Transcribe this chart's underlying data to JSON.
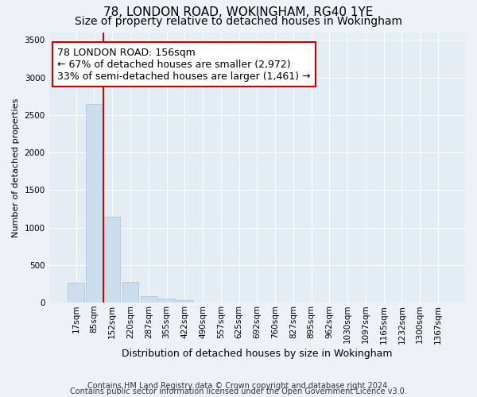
{
  "title1": "78, LONDON ROAD, WOKINGHAM, RG40 1YE",
  "title2": "Size of property relative to detached houses in Wokingham",
  "xlabel": "Distribution of detached houses by size in Wokingham",
  "ylabel": "Number of detached properties",
  "footnote1": "Contains HM Land Registry data © Crown copyright and database right 2024.",
  "footnote2": "Contains public sector information licensed under the Open Government Licence v3.0.",
  "bar_labels": [
    "17sqm",
    "85sqm",
    "152sqm",
    "220sqm",
    "287sqm",
    "355sqm",
    "422sqm",
    "490sqm",
    "557sqm",
    "625sqm",
    "692sqm",
    "760sqm",
    "827sqm",
    "895sqm",
    "962sqm",
    "1030sqm",
    "1097sqm",
    "1165sqm",
    "1232sqm",
    "1300sqm",
    "1367sqm"
  ],
  "bar_values": [
    270,
    2650,
    1140,
    280,
    90,
    50,
    30,
    0,
    0,
    0,
    0,
    0,
    0,
    0,
    0,
    0,
    0,
    0,
    0,
    0,
    0
  ],
  "bar_color": "#ccdded",
  "bar_edge_color": "#adc8dc",
  "vline_x_idx": 1.5,
  "vline_color": "#cc0000",
  "annotation_text": "78 LONDON ROAD: 156sqm\n← 67% of detached houses are smaller (2,972)\n33% of semi-detached houses are larger (1,461) →",
  "annotation_box_color": "#ffffff",
  "annotation_box_edgecolor": "#cc0000",
  "ylim": [
    0,
    3600
  ],
  "yticks": [
    0,
    500,
    1000,
    1500,
    2000,
    2500,
    3000,
    3500
  ],
  "background_color": "#eef2f7",
  "plot_background": "#e4ecf4",
  "grid_color": "#ffffff",
  "title1_fontsize": 11,
  "title2_fontsize": 10,
  "annotation_fontsize": 9,
  "xlabel_fontsize": 9,
  "ylabel_fontsize": 8,
  "footnote_fontsize": 7,
  "tick_fontsize": 7.5
}
